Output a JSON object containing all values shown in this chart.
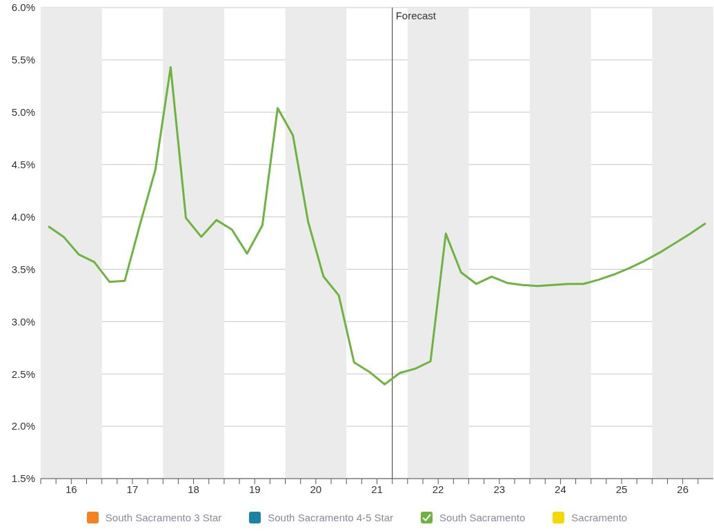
{
  "chart_data": {
    "type": "line",
    "x": [
      15.625,
      15.875,
      16.125,
      16.375,
      16.625,
      16.875,
      17.125,
      17.375,
      17.625,
      17.875,
      18.125,
      18.375,
      18.625,
      18.875,
      19.125,
      19.375,
      19.625,
      19.875,
      20.125,
      20.375,
      20.625,
      20.875,
      21.125,
      21.375,
      21.625,
      21.875,
      22.125,
      22.375,
      22.625,
      22.875,
      23.125,
      23.375,
      23.625,
      23.875,
      24.125,
      24.375,
      24.625,
      24.875,
      25.125,
      25.375,
      25.625,
      25.875,
      26.125,
      26.375
    ],
    "series": [
      {
        "name": "South Sacramento 3 Star",
        "color": "#f5821f",
        "values": [
          null,
          null,
          null,
          null,
          null,
          null,
          null,
          null,
          null,
          null,
          null,
          null,
          null,
          null,
          null,
          null,
          null,
          null,
          null,
          null,
          null,
          null,
          null,
          null,
          null,
          null,
          null,
          null,
          null,
          null,
          null,
          null,
          null,
          null,
          null,
          null,
          null,
          null,
          null,
          null,
          null,
          null,
          null,
          null
        ]
      },
      {
        "name": "South Sacramento 4-5 Star",
        "color": "#1b83a6",
        "values": [
          null,
          null,
          null,
          null,
          null,
          null,
          null,
          null,
          null,
          null,
          null,
          null,
          null,
          null,
          null,
          null,
          null,
          null,
          null,
          null,
          null,
          null,
          null,
          null,
          null,
          null,
          null,
          null,
          null,
          null,
          null,
          null,
          null,
          null,
          null,
          null,
          null,
          null,
          null,
          null,
          null,
          null,
          null,
          null
        ]
      },
      {
        "name": "South Sacramento",
        "color": "#6db33f",
        "values": [
          3.91,
          3.81,
          3.64,
          3.57,
          3.38,
          3.39,
          3.93,
          4.45,
          5.43,
          3.99,
          3.81,
          3.97,
          3.88,
          3.65,
          3.92,
          5.04,
          4.78,
          3.95,
          3.43,
          3.25,
          2.61,
          2.52,
          2.4,
          2.51,
          2.55,
          2.62,
          3.84,
          3.47,
          3.36,
          3.43,
          3.37,
          3.35,
          3.34,
          3.35,
          3.36,
          3.36,
          3.4,
          3.45,
          3.51,
          3.58,
          3.66,
          3.75,
          3.84,
          3.94
        ]
      },
      {
        "name": "Sacramento",
        "color": "#f5d800",
        "values": [
          null,
          null,
          null,
          null,
          null,
          null,
          null,
          null,
          null,
          null,
          null,
          null,
          null,
          null,
          null,
          null,
          null,
          null,
          null,
          null,
          null,
          null,
          null,
          null,
          null,
          null,
          null,
          null,
          null,
          null,
          null,
          null,
          null,
          null,
          null,
          null,
          null,
          null,
          null,
          null,
          null,
          null,
          null,
          null
        ]
      }
    ],
    "xlim": [
      15.5,
      26.5
    ],
    "xticks": [
      {
        "value": 15.5,
        "label": null
      },
      {
        "value": 15.75,
        "label": null
      },
      16,
      {
        "value": 16.25,
        "label": null
      },
      {
        "value": 16.5,
        "label": null
      },
      {
        "value": 16.75,
        "label": null
      },
      17,
      {
        "value": 17.25,
        "label": null
      },
      {
        "value": 17.5,
        "label": null
      },
      {
        "value": 17.75,
        "label": null
      },
      18,
      {
        "value": 18.25,
        "label": null
      },
      {
        "value": 18.5,
        "label": null
      },
      {
        "value": 18.75,
        "label": null
      },
      19,
      {
        "value": 19.25,
        "label": null
      },
      {
        "value": 19.5,
        "label": null
      },
      {
        "value": 19.75,
        "label": null
      },
      20,
      {
        "value": 20.25,
        "label": null
      },
      {
        "value": 20.5,
        "label": null
      },
      {
        "value": 20.75,
        "label": null
      },
      21,
      {
        "value": 21.25,
        "label": null
      },
      {
        "value": 21.5,
        "label": null
      },
      {
        "value": 21.75,
        "label": null
      },
      22,
      {
        "value": 22.25,
        "label": null
      },
      {
        "value": 22.5,
        "label": null
      },
      {
        "value": 22.75,
        "label": null
      },
      23,
      {
        "value": 23.25,
        "label": null
      },
      {
        "value": 23.5,
        "label": null
      },
      {
        "value": 23.75,
        "label": null
      },
      24,
      {
        "value": 24.25,
        "label": null
      },
      {
        "value": 24.5,
        "label": null
      },
      {
        "value": 24.75,
        "label": null
      },
      25,
      {
        "value": 25.25,
        "label": null
      },
      {
        "value": 25.5,
        "label": null
      },
      {
        "value": 25.75,
        "label": null
      },
      26,
      {
        "value": 26.25,
        "label": null
      }
    ],
    "ylim": [
      1.5,
      6
    ],
    "yticks": [
      {
        "value": 1.5,
        "label": "1.5%"
      },
      {
        "value": 2,
        "label": "2.0%"
      },
      {
        "value": 2.5,
        "label": "2.5%"
      },
      {
        "value": 3,
        "label": "3.0%"
      },
      {
        "value": 3.5,
        "label": "3.5%"
      },
      {
        "value": 4,
        "label": "4.0%"
      },
      {
        "value": 4.5,
        "label": "4.5%"
      },
      {
        "value": 5,
        "label": "5.0%"
      },
      {
        "value": 5.5,
        "label": "5.5%"
      },
      {
        "value": 6,
        "label": "6.0%"
      }
    ],
    "ref_lines": [
      {
        "axis": "x",
        "value": 21.25,
        "label": "Forecast",
        "color": "#333333"
      }
    ],
    "bands": [
      {
        "axis": "x",
        "from": 15.5,
        "to": 16.5,
        "color": "#ebebeb"
      },
      {
        "axis": "x",
        "from": 17.5,
        "to": 18.5,
        "color": "#ebebeb"
      },
      {
        "axis": "x",
        "from": 19.5,
        "to": 20.5,
        "color": "#ebebeb"
      },
      {
        "axis": "x",
        "from": 21.5,
        "to": 22.5,
        "color": "#ebebeb"
      },
      {
        "axis": "x",
        "from": 23.5,
        "to": 24.5,
        "color": "#ebebeb"
      },
      {
        "axis": "x",
        "from": 25.5,
        "to": 26.5,
        "color": "#ebebeb"
      }
    ],
    "grid": "y",
    "legend": "bottom",
    "marker": "none",
    "line_style": "solid"
  }
}
